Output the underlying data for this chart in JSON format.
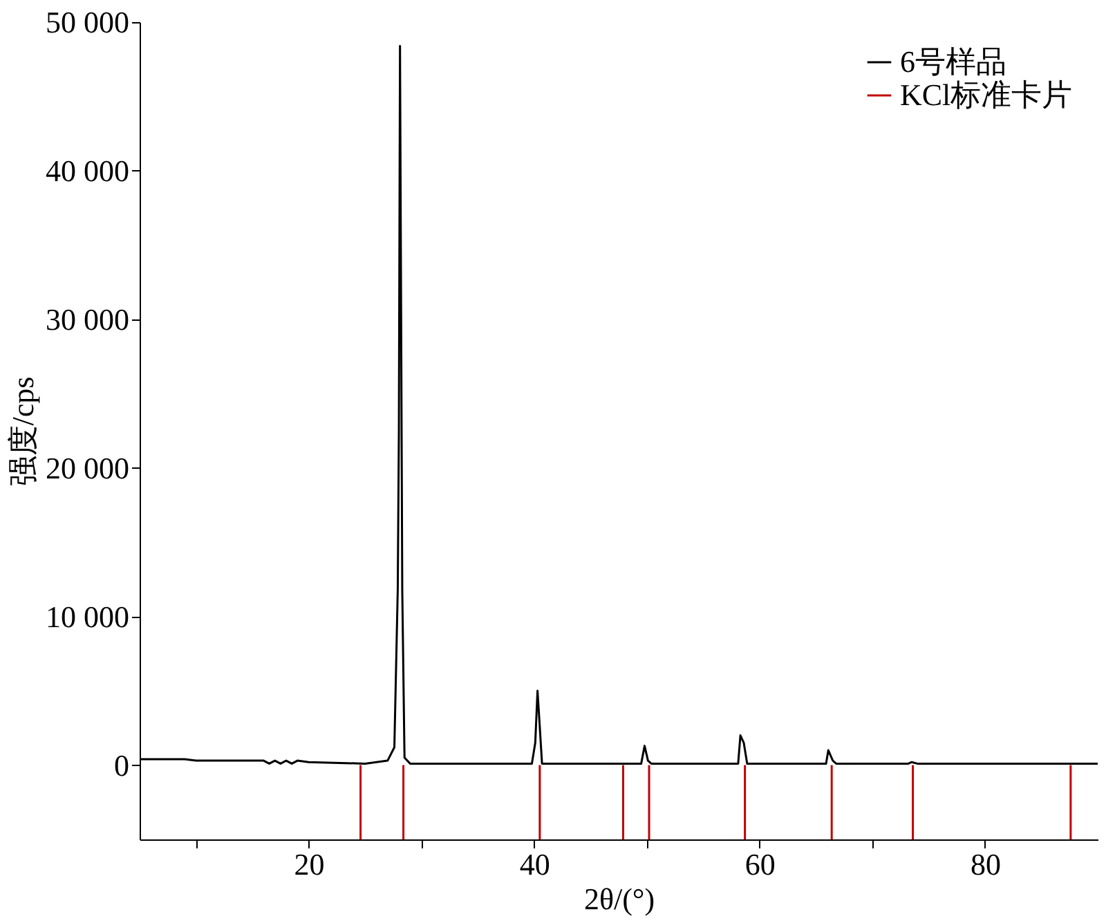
{
  "chart_data": {
    "type": "line",
    "xlabel": "2θ/(°)",
    "ylabel": "强度/cps",
    "xlim": [
      5,
      90
    ],
    "xticks": [
      {
        "value": 10,
        "label": null
      },
      20,
      {
        "value": 30,
        "label": null
      },
      40,
      {
        "value": 50,
        "label": null
      },
      60,
      {
        "value": 70,
        "label": null
      },
      80
    ],
    "ylim": [
      -5000,
      50000
    ],
    "yticks": [
      0,
      {
        "value": 10000,
        "label": "10 000"
      },
      {
        "value": 20000,
        "label": "20 000"
      },
      {
        "value": 30000,
        "label": "30 000"
      },
      {
        "value": 40000,
        "label": "40 000"
      },
      {
        "value": 50000,
        "label": "50 000"
      }
    ],
    "legend": "top right",
    "marker": "none",
    "line_style": "solid",
    "series": [
      {
        "name": "6号样品",
        "color": "#000000",
        "x": [
          5,
          9,
          10,
          16,
          16.5,
          17,
          17.5,
          18,
          18.5,
          19,
          20,
          25,
          27,
          27.6,
          27.9,
          28.0,
          28.1,
          28.3,
          28.5,
          29,
          39.8,
          40.1,
          40.3,
          40.45,
          40.7,
          49.5,
          49.8,
          50.1,
          50.4,
          58.1,
          58.3,
          58.6,
          58.9,
          65.9,
          66.1,
          66.5,
          66.8,
          73.2,
          73.5,
          74,
          90
        ],
        "values": [
          400,
          400,
          300,
          300,
          100,
          300,
          100,
          300,
          100,
          300,
          200,
          100,
          300,
          1200,
          11800,
          22300,
          48400,
          11800,
          500,
          100,
          100,
          1500,
          5000,
          3200,
          100,
          100,
          1300,
          300,
          100,
          100,
          2000,
          1500,
          100,
          100,
          1000,
          300,
          100,
          100,
          200,
          100,
          100
        ]
      },
      {
        "name": "KCl标准卡片",
        "color": "#c00000",
        "type": "bar",
        "x": [
          24.6,
          28.4,
          40.5,
          47.9,
          50.2,
          58.7,
          66.4,
          73.6,
          87.6
        ],
        "base": [
          -5000,
          -5000,
          -5000,
          -5000,
          -5000,
          -5000,
          -5000,
          -5000,
          -5000
        ],
        "values": [
          5000,
          5000,
          5000,
          5000,
          5000,
          5000,
          5000,
          5000,
          5000
        ]
      }
    ]
  }
}
